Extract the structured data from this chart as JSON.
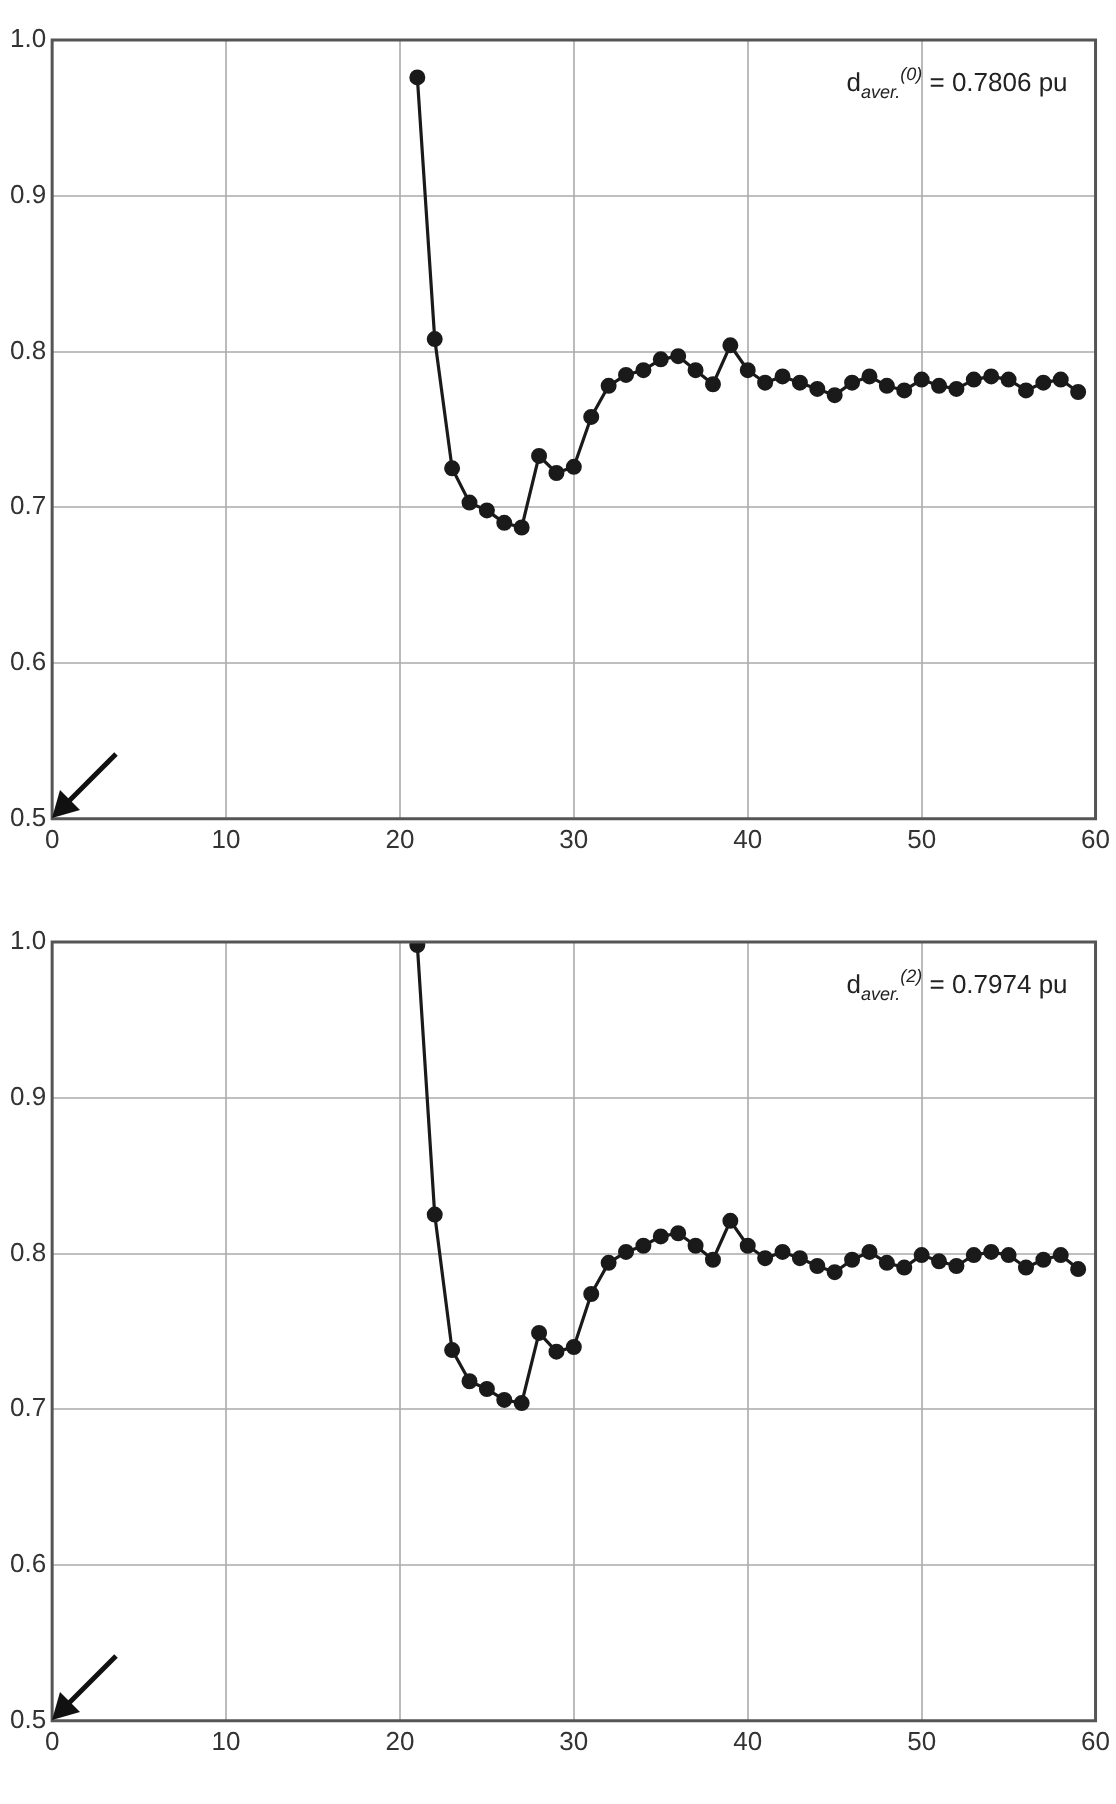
{
  "chart_data": [
    {
      "type": "line",
      "x": [
        21,
        22,
        23,
        24,
        25,
        26,
        27,
        28,
        29,
        30,
        31,
        32,
        33,
        34,
        35,
        36,
        37,
        38,
        39,
        40,
        41,
        42,
        43,
        44,
        45,
        46,
        47,
        48,
        49,
        50,
        51,
        52,
        53,
        54,
        55,
        56,
        57,
        58,
        59
      ],
      "series": [
        {
          "color": "#1a1a1a",
          "values": [
            0.976,
            0.808,
            0.725,
            0.703,
            0.698,
            0.69,
            0.687,
            0.733,
            0.722,
            0.726,
            0.758,
            0.778,
            0.785,
            0.788,
            0.795,
            0.797,
            0.788,
            0.779,
            0.804,
            0.788,
            0.78,
            0.784,
            0.78,
            0.776,
            0.772,
            0.78,
            0.784,
            0.778,
            0.775,
            0.782,
            0.778,
            0.776,
            0.782,
            0.784,
            0.782,
            0.775,
            0.78,
            0.782,
            0.774
          ]
        }
      ],
      "xlim": [
        0,
        60
      ],
      "xticks": [
        0,
        10,
        20,
        30,
        40,
        50,
        60
      ],
      "ylim": [
        0.5,
        1.0
      ],
      "yticks": [
        0.5,
        0.6,
        0.7,
        0.8,
        0.9,
        {
          "value": 1.0,
          "label": "1.0"
        }
      ],
      "annotations": [
        "d$_{aver.}$$^{(0)}$ = 0.7806 pu"
      ],
      "grid": true,
      "marker": "circle",
      "line_style": "solid",
      "legend": false
    },
    {
      "type": "line",
      "x": [
        21,
        22,
        23,
        24,
        25,
        26,
        27,
        28,
        29,
        30,
        31,
        32,
        33,
        34,
        35,
        36,
        37,
        38,
        39,
        40,
        41,
        42,
        43,
        44,
        45,
        46,
        47,
        48,
        49,
        50,
        51,
        52,
        53,
        54,
        55,
        56,
        57,
        58,
        59
      ],
      "series": [
        {
          "color": "#1a1a1a",
          "values": [
            0.998,
            0.825,
            0.738,
            0.718,
            0.713,
            0.706,
            0.704,
            0.749,
            0.737,
            0.74,
            0.774,
            0.794,
            0.801,
            0.805,
            0.811,
            0.813,
            0.805,
            0.796,
            0.821,
            0.805,
            0.797,
            0.801,
            0.797,
            0.792,
            0.788,
            0.796,
            0.801,
            0.794,
            0.791,
            0.799,
            0.795,
            0.792,
            0.799,
            0.801,
            0.799,
            0.791,
            0.796,
            0.799,
            0.79
          ]
        }
      ],
      "xlim": [
        0,
        60
      ],
      "xticks": [
        0,
        10,
        20,
        30,
        40,
        50,
        60
      ],
      "ylim": [
        0.5,
        1.0
      ],
      "yticks": [
        0.5,
        0.6,
        0.7,
        0.8,
        0.9,
        {
          "value": 1.0,
          "label": "1.0"
        }
      ],
      "annotations": [
        "d$_{aver.}$$^{(2)}$ = 0.7974 pu"
      ],
      "grid": true,
      "marker": "circle",
      "line_style": "solid",
      "legend": false
    }
  ]
}
